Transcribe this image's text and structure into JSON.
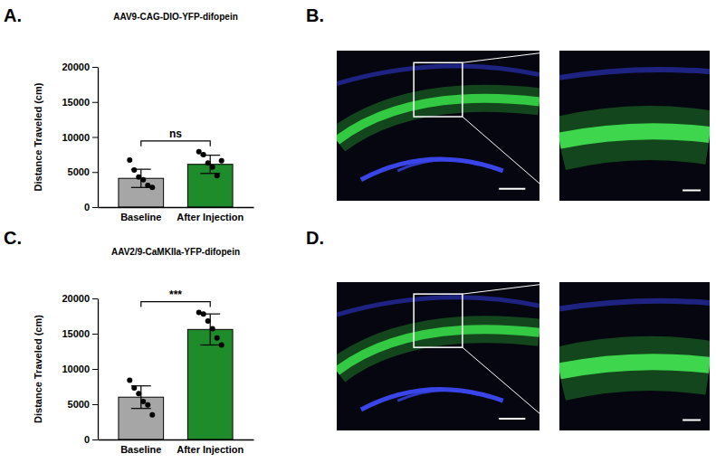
{
  "panel_labels": [
    "A.",
    "B.",
    "C.",
    "D."
  ],
  "chart_data": [
    {
      "type": "bar",
      "title": "AAV9-CAG-DIO-YFP-difopein",
      "ylabel": "Distance Traveled (cm)",
      "categories": [
        "Baseline",
        "After Injection"
      ],
      "values": [
        4100,
        6100
      ],
      "errors": [
        1300,
        1300
      ],
      "points": [
        [
          6700,
          5300,
          4300,
          3900,
          3100,
          2800
        ],
        [
          7900,
          7500,
          6300,
          5700,
          4500,
          6600
        ]
      ],
      "colors": [
        "#a6a6a6",
        "#1e8c2a"
      ],
      "ylim": [
        0,
        20000
      ],
      "yticks": [
        0,
        5000,
        10000,
        15000,
        20000
      ],
      "grid": false,
      "annotations": [
        {
          "text": "ns",
          "between": [
            "Baseline",
            "After Injection"
          ]
        }
      ]
    },
    {
      "type": "bar",
      "title": "AAV2/9-CaMKIIa-YFP-difopein",
      "ylabel": "Distance Traveled (cm)",
      "categories": [
        "Baseline",
        "After Injection"
      ],
      "values": [
        6000,
        15600
      ],
      "errors": [
        1600,
        2200
      ],
      "points": [
        [
          8400,
          7300,
          6500,
          5400,
          4900,
          3500
        ],
        [
          18000,
          17800,
          16800,
          15700,
          14400,
          13400
        ]
      ],
      "colors": [
        "#a6a6a6",
        "#1e8c2a"
      ],
      "ylim": [
        0,
        20000
      ],
      "yticks": [
        0,
        5000,
        10000,
        15000,
        20000
      ],
      "grid": false,
      "annotations": [
        {
          "text": "***",
          "between": [
            "Baseline",
            "After Injection"
          ]
        }
      ]
    }
  ]
}
